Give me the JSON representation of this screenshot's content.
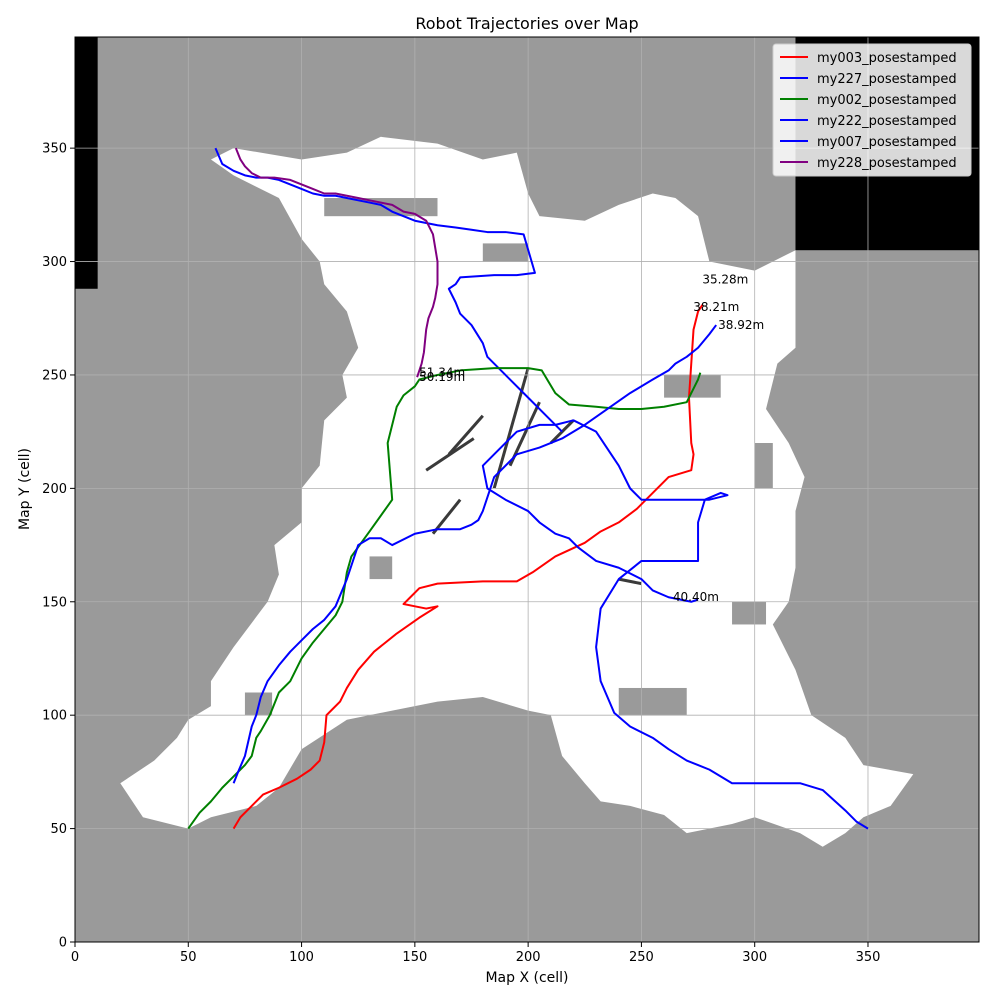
{
  "chart_data": {
    "type": "line",
    "title": "Robot Trajectories over Map",
    "xlabel": "Map X (cell)",
    "ylabel": "Map Y (cell)",
    "xlim": [
      0,
      399
    ],
    "ylim": [
      0,
      399
    ],
    "xticks": [
      0,
      50,
      100,
      150,
      200,
      250,
      300,
      350
    ],
    "yticks": [
      0,
      50,
      100,
      150,
      200,
      250,
      300,
      350
    ],
    "grid": true,
    "legend_position": "top-right",
    "background_map": {
      "description_colors": {
        "unknown": "#9a9a9a",
        "free": "#ffffff",
        "obstacle": "#000000",
        "edge": "#3a3a3a"
      },
      "free_region": [
        [
          20,
          70
        ],
        [
          35,
          80
        ],
        [
          45,
          90
        ],
        [
          50,
          98
        ],
        [
          60,
          104
        ],
        [
          60,
          115
        ],
        [
          70,
          130
        ],
        [
          85,
          150
        ],
        [
          90,
          162
        ],
        [
          88,
          175
        ],
        [
          100,
          185
        ],
        [
          100,
          200
        ],
        [
          108,
          210
        ],
        [
          110,
          230
        ],
        [
          120,
          240
        ],
        [
          118,
          250
        ],
        [
          125,
          262
        ],
        [
          120,
          278
        ],
        [
          110,
          290
        ],
        [
          108,
          300
        ],
        [
          100,
          310
        ],
        [
          90,
          328
        ],
        [
          70,
          338
        ],
        [
          60,
          345
        ],
        [
          70,
          350
        ],
        [
          100,
          345
        ],
        [
          120,
          348
        ],
        [
          135,
          355
        ],
        [
          160,
          352
        ],
        [
          180,
          345
        ],
        [
          195,
          348
        ],
        [
          200,
          330
        ],
        [
          205,
          320
        ],
        [
          225,
          318
        ],
        [
          240,
          325
        ],
        [
          255,
          330
        ],
        [
          265,
          328
        ],
        [
          275,
          320
        ],
        [
          280,
          300
        ],
        [
          300,
          296
        ],
        [
          318,
          305
        ],
        [
          318,
          262
        ],
        [
          310,
          255
        ],
        [
          305,
          235
        ],
        [
          315,
          220
        ],
        [
          322,
          205
        ],
        [
          318,
          190
        ],
        [
          318,
          165
        ],
        [
          315,
          150
        ],
        [
          308,
          140
        ],
        [
          318,
          120
        ],
        [
          325,
          100
        ],
        [
          340,
          90
        ],
        [
          348,
          78
        ],
        [
          370,
          74
        ],
        [
          360,
          60
        ],
        [
          348,
          55
        ],
        [
          340,
          48
        ],
        [
          330,
          42
        ],
        [
          320,
          48
        ],
        [
          300,
          55
        ],
        [
          290,
          52
        ],
        [
          270,
          48
        ],
        [
          260,
          56
        ],
        [
          245,
          60
        ],
        [
          232,
          62
        ],
        [
          225,
          70
        ],
        [
          215,
          82
        ],
        [
          210,
          100
        ],
        [
          200,
          102
        ],
        [
          180,
          108
        ],
        [
          160,
          106
        ],
        [
          140,
          102
        ],
        [
          120,
          98
        ],
        [
          100,
          85
        ],
        [
          90,
          68
        ],
        [
          80,
          60
        ],
        [
          60,
          55
        ],
        [
          50,
          50
        ],
        [
          30,
          55
        ]
      ],
      "gray_blocks": [
        [
          75,
          100,
          12,
          10
        ],
        [
          130,
          160,
          10,
          10
        ],
        [
          240,
          100,
          30,
          12
        ],
        [
          290,
          140,
          15,
          10
        ],
        [
          300,
          200,
          8,
          20
        ],
        [
          260,
          240,
          25,
          10
        ],
        [
          110,
          320,
          50,
          8
        ],
        [
          180,
          300,
          20,
          8
        ]
      ],
      "obstacle_blocks": [
        [
          0,
          288,
          10,
          111
        ],
        [
          318,
          305,
          81,
          94
        ]
      ],
      "edge_segments": [
        [
          200,
          253,
          185,
          200
        ],
        [
          205,
          238,
          192,
          210
        ],
        [
          176,
          222,
          155,
          208
        ],
        [
          180,
          232,
          165,
          215
        ],
        [
          220,
          230,
          210,
          220
        ],
        [
          170,
          195,
          158,
          180
        ],
        [
          240,
          160,
          250,
          158
        ]
      ]
    },
    "series": [
      {
        "name": "my003_posestamped",
        "color": "#ff0000",
        "x": [
          70,
          73,
          78,
          83,
          90,
          98,
          104,
          108,
          110,
          111,
          114,
          117,
          120,
          125,
          132,
          142,
          152,
          160,
          155,
          150,
          145,
          148,
          152,
          160,
          180,
          195,
          202,
          212,
          225,
          232,
          240,
          248,
          255,
          262,
          272,
          273,
          272,
          271,
          272,
          273,
          275,
          277
        ],
        "y": [
          50,
          55,
          60,
          65,
          68,
          72,
          76,
          80,
          88,
          100,
          103,
          106,
          112,
          120,
          128,
          136,
          143,
          148,
          147,
          148,
          149,
          152,
          156,
          158,
          159,
          159,
          163,
          170,
          176,
          181,
          185,
          191,
          198,
          205,
          208,
          215,
          220,
          240,
          255,
          270,
          278,
          281
        ],
        "end_label": "38.21m"
      },
      {
        "name": "my227_posestamped",
        "color": "#0000ff",
        "x": [
          62,
          65,
          70,
          75,
          80,
          85,
          90,
          95,
          100,
          105,
          110,
          115,
          120,
          125,
          130,
          135,
          140,
          145,
          150,
          155,
          160,
          168,
          175,
          182,
          190,
          198,
          203,
          195,
          185,
          170,
          168,
          165,
          168,
          170,
          175,
          180,
          182,
          190,
          200,
          210,
          215
        ],
        "y": [
          350,
          343,
          340,
          338,
          337,
          337,
          336,
          334,
          332,
          330,
          329,
          329,
          328,
          327,
          326,
          325,
          322,
          320,
          318,
          317,
          316,
          315,
          314,
          313,
          313,
          312,
          295,
          294,
          294,
          293,
          290,
          288,
          282,
          277,
          272,
          264,
          258,
          250,
          240,
          230,
          225
        ],
        "end_label": ""
      },
      {
        "name": "my002_posestamped",
        "color": "#008000",
        "x": [
          50,
          55,
          60,
          65,
          70,
          75,
          78,
          80,
          82,
          86,
          90,
          95,
          100,
          105,
          110,
          115,
          118,
          120,
          122,
          130,
          140,
          138,
          140,
          142,
          145,
          150,
          152,
          160,
          170,
          185,
          200,
          206,
          212,
          218,
          230,
          240,
          250,
          260,
          270,
          275,
          276
        ],
        "y": [
          50,
          57,
          62,
          68,
          73,
          78,
          82,
          90,
          93,
          100,
          110,
          115,
          125,
          132,
          138,
          144,
          150,
          163,
          170,
          181,
          195,
          220,
          228,
          236,
          241,
          245,
          248,
          250,
          252,
          253,
          253,
          252,
          242,
          237,
          236,
          235,
          235,
          236,
          238,
          248,
          251
        ],
        "end_label": "51.34m"
      },
      {
        "name": "my222_posestamped",
        "color": "#0000ff",
        "x": [
          70,
          72,
          75,
          78,
          80,
          82,
          85,
          90,
          95,
          100,
          105,
          110,
          115,
          120,
          125,
          130,
          135,
          140,
          150,
          160,
          170,
          175,
          178,
          180,
          185,
          195,
          205,
          215,
          225,
          235,
          245,
          255,
          262,
          265,
          270,
          275,
          280,
          283
        ],
        "y": [
          70,
          75,
          82,
          95,
          100,
          108,
          115,
          122,
          128,
          133,
          138,
          142,
          148,
          160,
          175,
          178,
          178,
          175,
          180,
          182,
          182,
          184,
          186,
          190,
          205,
          215,
          218,
          222,
          228,
          235,
          242,
          248,
          252,
          255,
          258,
          262,
          268,
          272
        ],
        "end_label": "38.92m"
      },
      {
        "name": "my007_posestamped",
        "color": "#0000ff",
        "x": [
          350,
          345,
          340,
          330,
          320,
          305,
          290,
          280,
          275,
          270,
          262,
          255,
          245,
          238,
          232,
          230,
          232,
          240,
          250,
          265,
          275,
          275,
          278,
          285,
          288,
          280,
          270,
          260,
          255,
          250,
          245,
          240,
          230,
          220,
          212,
          205,
          195,
          185,
          180,
          182,
          190,
          200,
          205,
          212,
          218,
          222,
          230,
          240,
          250,
          255,
          262,
          272,
          275
        ],
        "y": [
          50,
          53,
          58,
          67,
          70,
          70,
          70,
          76,
          78,
          80,
          85,
          90,
          95,
          101,
          115,
          130,
          147,
          160,
          168,
          168,
          168,
          185,
          195,
          198,
          197,
          195,
          195,
          195,
          195,
          195,
          200,
          210,
          225,
          230,
          228,
          228,
          225,
          215,
          210,
          200,
          195,
          190,
          185,
          180,
          178,
          174,
          168,
          165,
          160,
          155,
          152,
          150,
          151
        ],
        "end_label": "40.40m"
      },
      {
        "name": "my228_posestamped",
        "color": "#800080",
        "x": [
          71,
          73,
          75,
          78,
          82,
          88,
          95,
          100,
          105,
          110,
          115,
          120,
          125,
          130,
          135,
          140,
          145,
          150,
          155,
          158,
          160,
          160,
          159,
          158,
          156,
          155,
          154,
          153,
          152,
          151
        ],
        "y": [
          350,
          345,
          342,
          339,
          337,
          337,
          336,
          334,
          332,
          330,
          330,
          329,
          328,
          327,
          326,
          325,
          322,
          321,
          318,
          312,
          300,
          290,
          284,
          280,
          275,
          270,
          260,
          255,
          252,
          249
        ],
        "end_label": "50.19m"
      }
    ],
    "annotations": [
      {
        "text": "35.28m",
        "x": 276,
        "y": 292
      },
      {
        "text": "38.21m",
        "x": 272,
        "y": 280
      },
      {
        "text": "38.92m",
        "x": 283,
        "y": 272
      },
      {
        "text": "51.34m",
        "x": 151,
        "y": 251
      },
      {
        "text": "50.19m",
        "x": 151,
        "y": 249
      },
      {
        "text": "40.40m",
        "x": 263,
        "y": 152
      }
    ]
  }
}
